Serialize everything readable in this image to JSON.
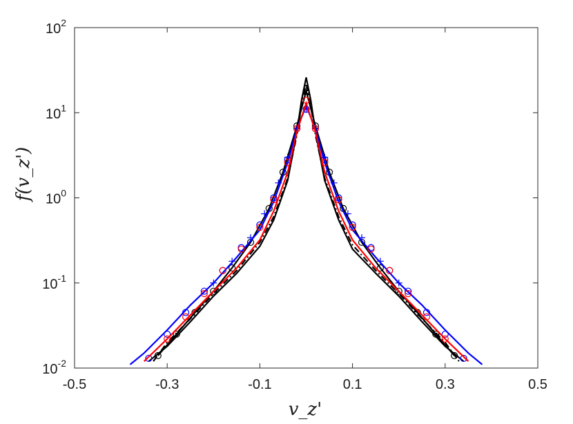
{
  "chart_data": {
    "type": "line",
    "xlabel": "v_z'",
    "ylabel": "f(v_z')",
    "xlim": [
      -0.5,
      0.5
    ],
    "ylim": [
      0.01,
      100
    ],
    "yscale": "log",
    "grid": false,
    "legend": "none",
    "x_ticks": [
      "-0.5",
      "-0.3",
      "-0.1",
      "0.1",
      "0.3",
      "0.5"
    ],
    "x_tick_values": [
      -0.5,
      -0.3,
      -0.1,
      0.1,
      0.3,
      0.5
    ],
    "y_ticks": [
      {
        "base": "10",
        "exp": "-2",
        "value": 0.01
      },
      {
        "base": "10",
        "exp": "-1",
        "value": 0.1
      },
      {
        "base": "10",
        "exp": "0",
        "value": 1
      },
      {
        "base": "10",
        "exp": "1",
        "value": 10
      },
      {
        "base": "10",
        "exp": "2",
        "value": 100
      }
    ],
    "series": [
      {
        "color": "#000000",
        "style": "solid",
        "marker": "none",
        "x": [
          -0.34,
          -0.3,
          -0.25,
          -0.2,
          -0.15,
          -0.1,
          -0.07,
          -0.04,
          -0.02,
          -0.01,
          0.0,
          0.01,
          0.02,
          0.04,
          0.07,
          0.1,
          0.15,
          0.2,
          0.25,
          0.3,
          0.34
        ],
        "y": [
          0.012,
          0.018,
          0.035,
          0.07,
          0.13,
          0.27,
          0.55,
          1.6,
          6.0,
          14,
          26,
          14,
          6.0,
          1.6,
          0.55,
          0.25,
          0.13,
          0.07,
          0.035,
          0.018,
          0.012
        ]
      },
      {
        "color": "#000000",
        "style": "dashdot",
        "marker": "none",
        "x": [
          -0.33,
          -0.3,
          -0.25,
          -0.2,
          -0.15,
          -0.1,
          -0.07,
          -0.04,
          -0.02,
          -0.01,
          0.0,
          0.01,
          0.02,
          0.04,
          0.07,
          0.1,
          0.15,
          0.2,
          0.25,
          0.3,
          0.33
        ],
        "y": [
          0.012,
          0.02,
          0.038,
          0.075,
          0.14,
          0.3,
          0.6,
          1.7,
          5.5,
          12,
          22,
          12,
          5.5,
          1.7,
          0.6,
          0.28,
          0.14,
          0.075,
          0.038,
          0.02,
          0.012
        ]
      },
      {
        "color": "#000000",
        "style": "solid",
        "marker": "circle",
        "x": [
          -0.32,
          -0.28,
          -0.24,
          -0.2,
          -0.16,
          -0.12,
          -0.08,
          -0.05,
          -0.02,
          0.0,
          0.02,
          0.05,
          0.08,
          0.12,
          0.16,
          0.2,
          0.24,
          0.28,
          0.32
        ],
        "y": [
          0.014,
          0.025,
          0.045,
          0.08,
          0.15,
          0.3,
          0.75,
          2.0,
          7.0,
          18,
          7.0,
          2.0,
          0.75,
          0.3,
          0.15,
          0.08,
          0.045,
          0.025,
          0.014
        ]
      },
      {
        "color": "#0000ff",
        "style": "solid",
        "marker": "none",
        "x": [
          -0.38,
          -0.35,
          -0.3,
          -0.25,
          -0.2,
          -0.15,
          -0.1,
          -0.07,
          -0.04,
          -0.02,
          0.0,
          0.02,
          0.04,
          0.07,
          0.1,
          0.15,
          0.2,
          0.25,
          0.3,
          0.35,
          0.38
        ],
        "y": [
          0.011,
          0.015,
          0.028,
          0.055,
          0.1,
          0.2,
          0.42,
          0.9,
          2.6,
          6.5,
          12,
          6.5,
          2.6,
          0.9,
          0.42,
          0.2,
          0.1,
          0.055,
          0.028,
          0.015,
          0.011
        ]
      },
      {
        "color": "#0000ff",
        "style": "none",
        "marker": "circle",
        "x": [
          -0.34,
          -0.3,
          -0.26,
          -0.22,
          -0.18,
          -0.14,
          -0.1,
          -0.07,
          -0.04,
          -0.02,
          0.0,
          0.02,
          0.04,
          0.07,
          0.1,
          0.14,
          0.18,
          0.22,
          0.26,
          0.3,
          0.34
        ],
        "y": [
          0.013,
          0.025,
          0.045,
          0.08,
          0.14,
          0.26,
          0.48,
          1.0,
          2.8,
          6.5,
          11,
          6.5,
          2.8,
          1.0,
          0.48,
          0.26,
          0.14,
          0.08,
          0.045,
          0.025,
          0.013
        ]
      },
      {
        "color": "#0000ff",
        "style": "none",
        "marker": "plus",
        "x": [
          -0.2,
          -0.16,
          -0.12,
          -0.09,
          -0.06,
          -0.04,
          -0.02,
          0.0,
          0.02,
          0.04,
          0.06,
          0.09,
          0.12,
          0.16,
          0.2
        ],
        "y": [
          0.1,
          0.18,
          0.34,
          0.65,
          1.5,
          3.0,
          6.5,
          11,
          6.5,
          3.0,
          1.5,
          0.65,
          0.34,
          0.18,
          0.1
        ]
      },
      {
        "color": "#ff0000",
        "style": "solid",
        "marker": "none",
        "x": [
          -0.35,
          -0.3,
          -0.25,
          -0.2,
          -0.15,
          -0.1,
          -0.07,
          -0.04,
          -0.02,
          0.0,
          0.02,
          0.04,
          0.07,
          0.1,
          0.15,
          0.2,
          0.25,
          0.3,
          0.35
        ],
        "y": [
          0.012,
          0.022,
          0.042,
          0.08,
          0.15,
          0.32,
          0.7,
          2.0,
          6.0,
          13,
          6.0,
          2.0,
          0.7,
          0.32,
          0.15,
          0.08,
          0.042,
          0.022,
          0.012
        ]
      },
      {
        "color": "#ff0000",
        "style": "none",
        "marker": "circle",
        "x": [
          -0.3,
          -0.26,
          -0.22,
          -0.18,
          -0.14,
          -0.1,
          -0.07,
          -0.04,
          -0.02,
          0.0,
          0.02,
          0.04,
          0.07,
          0.1,
          0.14,
          0.18,
          0.22,
          0.26,
          0.3
        ],
        "y": [
          0.022,
          0.04,
          0.075,
          0.14,
          0.25,
          0.45,
          0.95,
          2.6,
          6.5,
          14,
          6.5,
          2.6,
          0.95,
          0.45,
          0.25,
          0.14,
          0.075,
          0.04,
          0.022
        ]
      }
    ]
  }
}
